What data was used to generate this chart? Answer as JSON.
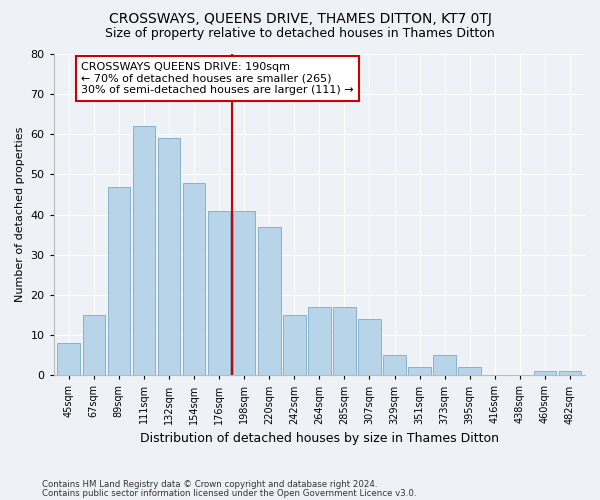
{
  "title": "CROSSWAYS, QUEENS DRIVE, THAMES DITTON, KT7 0TJ",
  "subtitle": "Size of property relative to detached houses in Thames Ditton",
  "xlabel": "Distribution of detached houses by size in Thames Ditton",
  "ylabel": "Number of detached properties",
  "categories": [
    "45sqm",
    "67sqm",
    "89sqm",
    "111sqm",
    "132sqm",
    "154sqm",
    "176sqm",
    "198sqm",
    "220sqm",
    "242sqm",
    "264sqm",
    "285sqm",
    "307sqm",
    "329sqm",
    "351sqm",
    "373sqm",
    "395sqm",
    "416sqm",
    "438sqm",
    "460sqm",
    "482sqm"
  ],
  "values": [
    8,
    15,
    47,
    62,
    59,
    48,
    41,
    41,
    37,
    15,
    17,
    17,
    14,
    5,
    2,
    5,
    2,
    0,
    0,
    1,
    1
  ],
  "bar_color": "#b8d4e8",
  "bar_edge_color": "#7aaac8",
  "vline_x_index": 7,
  "vline_color": "#cc0000",
  "annotation_line1": "CROSSWAYS QUEENS DRIVE: 190sqm",
  "annotation_line2": "← 70% of detached houses are smaller (265)",
  "annotation_line3": "30% of semi-detached houses are larger (111) →",
  "annotation_box_color": "#ffffff",
  "annotation_box_edge_color": "#cc0000",
  "ylim": [
    0,
    80
  ],
  "yticks": [
    0,
    10,
    20,
    30,
    40,
    50,
    60,
    70,
    80
  ],
  "footer1": "Contains HM Land Registry data © Crown copyright and database right 2024.",
  "footer2": "Contains public sector information licensed under the Open Government Licence v3.0.",
  "background_color": "#eef2f7",
  "title_fontsize": 10,
  "subtitle_fontsize": 9,
  "annotation_fontsize": 8
}
